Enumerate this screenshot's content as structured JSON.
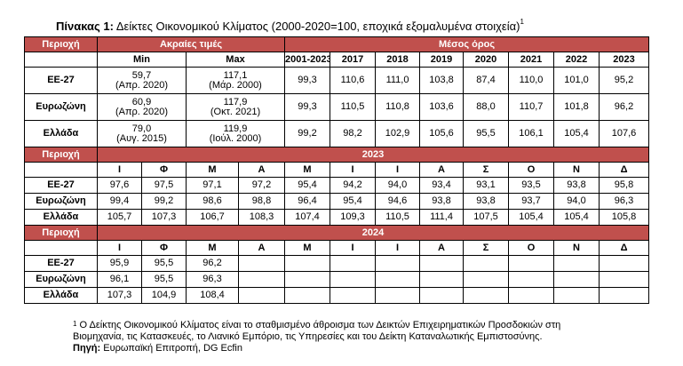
{
  "title": {
    "label": "Πίνακας 1:",
    "text": "Δείκτες Οικονομικού Κλίματος (2000-2020=100, εποχικά εξομαλυμένα στοιχεία)",
    "mark": "1"
  },
  "header": {
    "region": "Περιοχή",
    "extremes": "Ακραίες τιμές",
    "average": "Μέσος όρος",
    "min": "Min",
    "max": "Max",
    "periods": [
      "2001-2023",
      "2017",
      "2018",
      "2019",
      "2020",
      "2021",
      "2022",
      "2023"
    ]
  },
  "summary_rows": [
    {
      "region": "ΕΕ-27",
      "min_value": "59,7",
      "min_date": "(Απρ. 2020)",
      "max_value": "117,1",
      "max_date": "(Μάρ. 2000)",
      "values": [
        "99,3",
        "110,6",
        "111,0",
        "103,8",
        "87,4",
        "110,0",
        "101,0",
        "95,2"
      ]
    },
    {
      "region": "Ευρωζώνη",
      "min_value": "60,9",
      "min_date": "(Απρ. 2020)",
      "max_value": "117,9",
      "max_date": "(Οκτ. 2021)",
      "values": [
        "99,3",
        "110,5",
        "110,8",
        "103,6",
        "88,0",
        "110,7",
        "101,8",
        "96,2"
      ]
    },
    {
      "region": "Ελλάδα",
      "min_value": "79,0",
      "min_date": "(Αυγ. 2015)",
      "max_value": "119,9",
      "max_date": "(Ιούλ. 2000)",
      "values": [
        "99,2",
        "98,2",
        "102,9",
        "105,6",
        "95,5",
        "106,1",
        "105,4",
        "107,6"
      ]
    }
  ],
  "months": [
    "Ι",
    "Φ",
    "Μ",
    "Α",
    "Μ",
    "Ι",
    "Ι",
    "Α",
    "Σ",
    "Ο",
    "Ν",
    "Δ"
  ],
  "year_2023": {
    "year": "2023",
    "rows": [
      {
        "region": "ΕΕ-27",
        "values": [
          "97,6",
          "97,5",
          "97,1",
          "97,2",
          "95,4",
          "94,2",
          "94,0",
          "93,4",
          "93,1",
          "93,5",
          "93,8",
          "95,8"
        ]
      },
      {
        "region": "Ευρωζώνη",
        "values": [
          "99,4",
          "99,2",
          "98,6",
          "98,8",
          "96,4",
          "95,4",
          "94,6",
          "93,8",
          "93,8",
          "93,7",
          "94,0",
          "96,3"
        ]
      },
      {
        "region": "Ελλάδα",
        "values": [
          "105,7",
          "107,3",
          "106,7",
          "108,3",
          "107,4",
          "109,3",
          "110,5",
          "111,4",
          "107,5",
          "105,4",
          "105,4",
          "105,8"
        ]
      }
    ]
  },
  "year_2024": {
    "year": "2024",
    "rows": [
      {
        "region": "ΕΕ-27",
        "values": [
          "95,9",
          "95,5",
          "96,2",
          "",
          "",
          "",
          "",
          "",
          "",
          "",
          "",
          ""
        ]
      },
      {
        "region": "Ευρωζώνη",
        "values": [
          "96,1",
          "95,5",
          "96,3",
          "",
          "",
          "",
          "",
          "",
          "",
          "",
          "",
          ""
        ]
      },
      {
        "region": "Ελλάδα",
        "values": [
          "107,3",
          "104,9",
          "108,4",
          "",
          "",
          "",
          "",
          "",
          "",
          "",
          "",
          ""
        ]
      }
    ]
  },
  "notes": {
    "footnote_mark": "1",
    "footnote_line1": "Ο Δείκτης Οικονομικού Κλίματος είναι το σταθμισμένο άθροισμα των Δεικτών Επιχειρηματικών Προσδοκιών στη",
    "footnote_line2": "Βιομηχανία, τις Κατασκευές, το Λιανικό Εμπόριο, τις Υπηρεσίες και του Δείκτη Καταναλωτικής Εμπιστοσύνης.",
    "source_label": "Πηγή:",
    "source_text": "Ευρωπαϊκή Επιτροπή, DG Ecfin"
  }
}
